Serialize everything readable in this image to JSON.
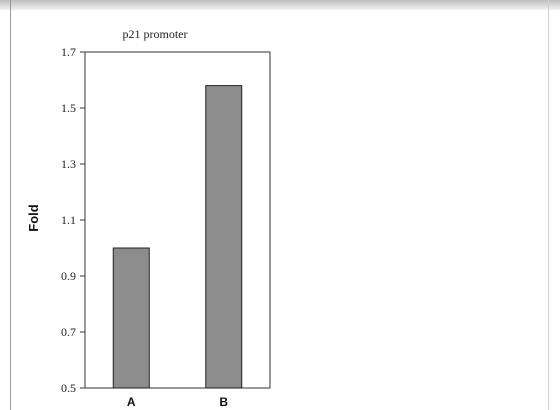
{
  "chart_data": {
    "type": "bar",
    "title": "p21 promoter",
    "xlabel": "",
    "ylabel": "Fold",
    "categories": [
      "A",
      "B"
    ],
    "values": [
      1.0,
      1.58
    ],
    "ylim": [
      0.5,
      1.7
    ],
    "yticks": [
      "0.5",
      "0.7",
      "0.9",
      "1.1",
      "1.3",
      "1.5",
      "1.7"
    ],
    "bar_color": "#8c8c8c",
    "grid": false,
    "legend": "none"
  }
}
